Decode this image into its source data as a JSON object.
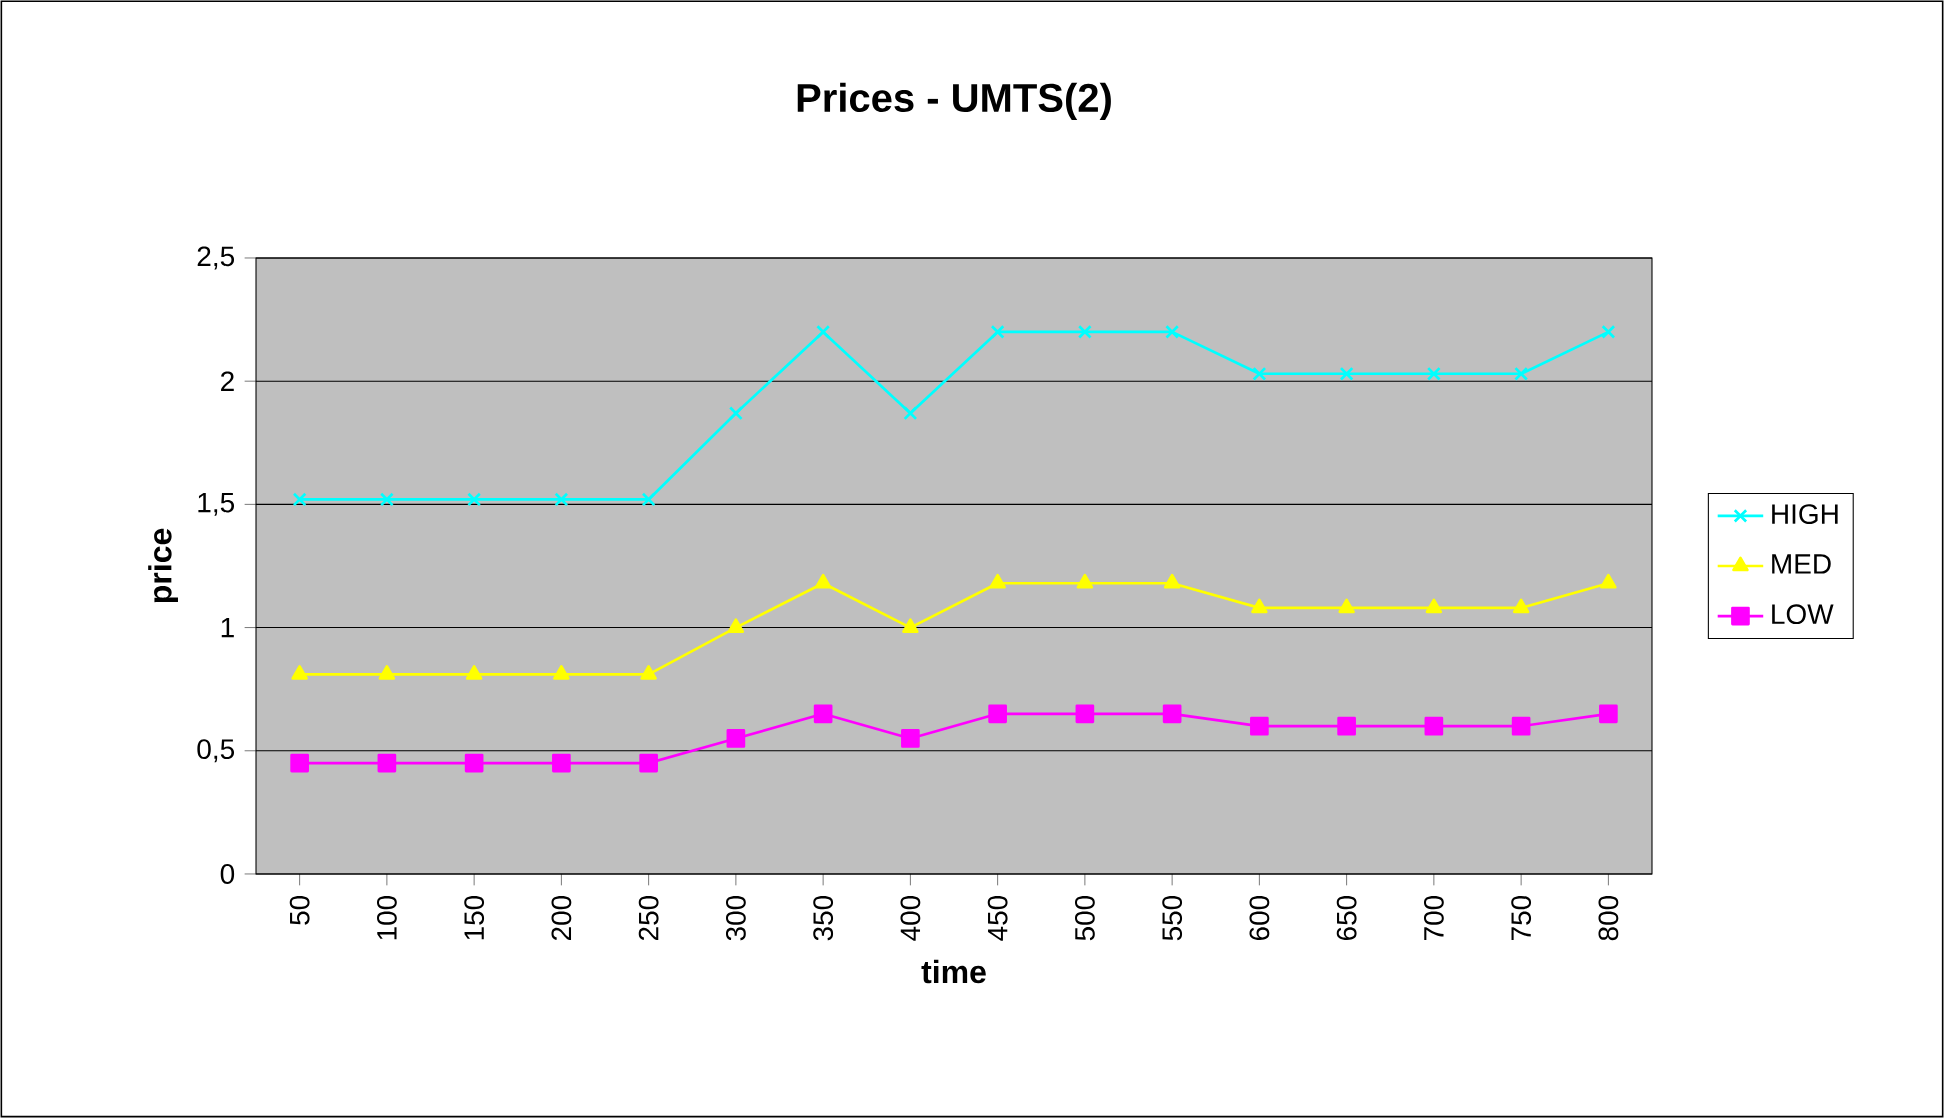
{
  "chart_data": {
    "type": "line",
    "title": "Prices - UMTS(2)",
    "xlabel": "time",
    "ylabel": "price",
    "categories": [
      "50",
      "100",
      "150",
      "200",
      "250",
      "300",
      "350",
      "400",
      "450",
      "500",
      "550",
      "600",
      "650",
      "700",
      "750",
      "800"
    ],
    "series": [
      {
        "name": "HIGH",
        "color": "#00ffff",
        "marker": "cross",
        "values": [
          1.52,
          1.52,
          1.52,
          1.52,
          1.52,
          1.87,
          2.2,
          1.87,
          2.2,
          2.2,
          2.2,
          2.03,
          2.03,
          2.03,
          2.03,
          2.2
        ]
      },
      {
        "name": "MED",
        "color": "#ffff00",
        "marker": "triangle",
        "values": [
          0.81,
          0.81,
          0.81,
          0.81,
          0.81,
          1.0,
          1.18,
          1.0,
          1.18,
          1.18,
          1.18,
          1.08,
          1.08,
          1.08,
          1.08,
          1.18
        ]
      },
      {
        "name": "LOW",
        "color": "#ff00ff",
        "marker": "square",
        "values": [
          0.45,
          0.45,
          0.45,
          0.45,
          0.45,
          0.55,
          0.65,
          0.55,
          0.65,
          0.65,
          0.65,
          0.6,
          0.6,
          0.6,
          0.6,
          0.65
        ]
      }
    ],
    "ylim": [
      0,
      2.5
    ],
    "yticks": [
      0,
      {
        "value": 0.5,
        "label": "0,5"
      },
      1,
      {
        "value": 1.5,
        "label": "1,5"
      },
      2,
      {
        "value": 2.5,
        "label": "2,5"
      }
    ],
    "grid": "y",
    "legend": "right",
    "line_style": "solid"
  }
}
